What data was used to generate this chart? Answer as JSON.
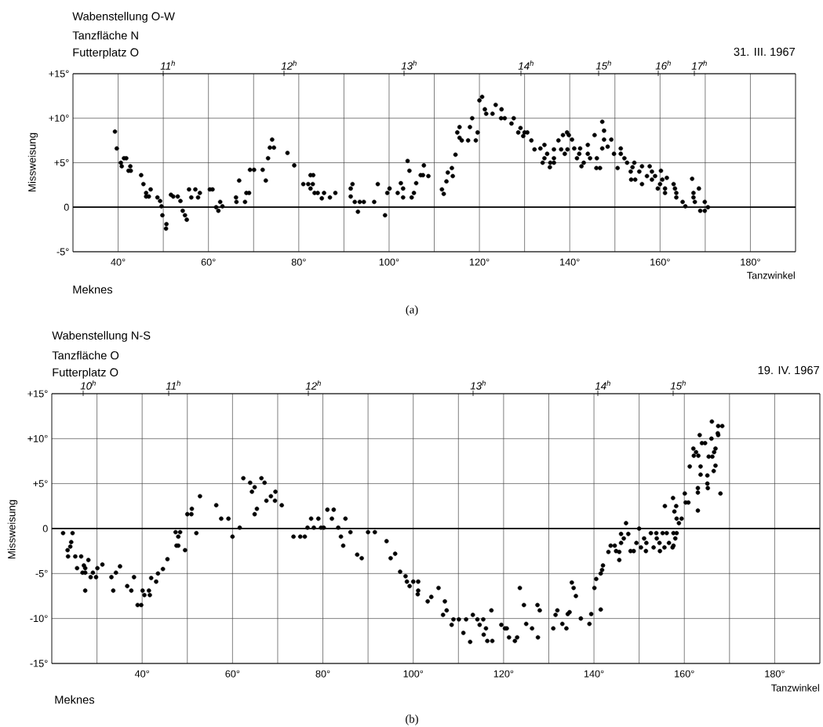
{
  "chart_data": [
    {
      "type": "scatter",
      "title": "Wabenstellung O-W",
      "annotations": [
        "Tanzfläche N",
        "Futterplatz O",
        "31. III. 1967",
        "Meknes",
        "(a)",
        "11$^{h}$",
        "12$^{h}$",
        "13$^{h}$",
        "14$^{h}$",
        "15$^{h}$",
        "16$^{h}$",
        "17$^{h}$"
      ],
      "xlabel": "Tanzwinkel",
      "ylabel": "Missweisung",
      "x": [
        39.3,
        39.7,
        40.6,
        40.8,
        41.3,
        41.8,
        42.3,
        42.8,
        42.7,
        45.1,
        45.6,
        46.2,
        46.2,
        46.8,
        47.2,
        48.7,
        49.3,
        49.6,
        49.8,
        50.7,
        50.6,
        51.7,
        52.2,
        53.2,
        53.8,
        54.3,
        54.8,
        55.2,
        55.7,
        56.2,
        57.1,
        57.7,
        58.1,
        60.3,
        60.9,
        61.7,
        62.2,
        62.6,
        63.1,
        66.1,
        66.2,
        66.8,
        68.1,
        68.4,
        69.0,
        69.2,
        70.1,
        72.0,
        72.7,
        73.2,
        73.6,
        74.5,
        74.1,
        77.5,
        79.0,
        81.0,
        82.1,
        82.6,
        83.2,
        82.6,
        83.1,
        83.5,
        84.2,
        85.1,
        85.6,
        86.9,
        88.1,
        91.5,
        91.9,
        91.5,
        92.4,
        93.1,
        93.5,
        94.4,
        96.7,
        97.5,
        99.1,
        99.6,
        100.1,
        101.9,
        102.6,
        103.1,
        103.1,
        104.1,
        104.5,
        105.0,
        105.5,
        106.0,
        107.0,
        107.5,
        107.7,
        108.7,
        111.7,
        112.1,
        112.7,
        113.0,
        113.9,
        114.1,
        114.7,
        115.1,
        115.6,
        115.6,
        116.1,
        117.5,
        117.9,
        118.4,
        119.2,
        119.6,
        120.0,
        120.6,
        121.2,
        121.5,
        122.9,
        123.6,
        124.9,
        124.8,
        125.6,
        127.1,
        127.6,
        128.6,
        129.1,
        129.7,
        130.0,
        130.6,
        131.5,
        132.2,
        133.5,
        134.0,
        134.4,
        134.4,
        135.0,
        135.6,
        135.7,
        136.5,
        136.5,
        136.5,
        138.1,
        137.5,
        138.5,
        138.9,
        139.4,
        139.8,
        139.5,
        140.5,
        141.0,
        142.3,
        141.6,
        142.1,
        144.0,
        142.6,
        143.1,
        144.0,
        144.5,
        146.0,
        145.5,
        145.9,
        146.7,
        147.2,
        147.6,
        147.2,
        147.6,
        149.2,
        148.4,
        149.8,
        151.3,
        151.3,
        150.6,
        152.1,
        152.7,
        153.5,
        153.6,
        154.5,
        153.9,
        154.3,
        155.4,
        156.0,
        156.0,
        157.1,
        157.7,
        158.2,
        158.2,
        160.5,
        158.9,
        159.5,
        160.0,
        163.0,
        160.2,
        161.1,
        161.5,
        161.1,
        163.3,
        163.6,
        167.4,
        163.6,
        167.4,
        165.0,
        169.9,
        165.6,
        167.1,
        168.6,
        167.7,
        168.9,
        170.6,
        169.9
      ],
      "values": [
        8.5,
        6.6,
        5.0,
        4.6,
        5.5,
        5.5,
        4.1,
        4.1,
        4.6,
        3.6,
        2.6,
        1.6,
        1.2,
        1.2,
        2.0,
        1.1,
        0.7,
        0.1,
        -0.9,
        -1.9,
        -2.4,
        1.4,
        1.2,
        1.2,
        0.7,
        -0.4,
        -0.9,
        -1.4,
        2.0,
        1.1,
        2.0,
        1.1,
        1.6,
        2.0,
        2.0,
        0,
        -0.4,
        0.6,
        0.1,
        1.1,
        0.6,
        3.0,
        0.6,
        1.6,
        1.6,
        4.2,
        4.2,
        4.2,
        3.0,
        5.5,
        6.7,
        6.7,
        7.6,
        6.1,
        4.7,
        2.6,
        2.6,
        3.6,
        3.6,
        2.1,
        2.6,
        1.6,
        1.6,
        1.0,
        1.6,
        1.1,
        1.6,
        2.1,
        2.6,
        1.2,
        0.6,
        -0.5,
        0.6,
        0.6,
        0.6,
        2.6,
        -0.9,
        1.6,
        2.1,
        1.6,
        2.7,
        2.1,
        1.1,
        5.2,
        4.1,
        1.1,
        1.6,
        2.7,
        3.6,
        3.6,
        4.7,
        3.5,
        2.0,
        1.5,
        2.9,
        3.9,
        4.4,
        3.5,
        5.9,
        8.4,
        9.0,
        7.8,
        7.5,
        7.5,
        9.0,
        10.0,
        7.5,
        8.4,
        12.0,
        12.4,
        11.0,
        10.5,
        10.5,
        11.5,
        11.0,
        10.0,
        10.0,
        9.4,
        10.0,
        8.4,
        8.9,
        8.0,
        8.4,
        8.4,
        7.5,
        6.5,
        6.6,
        5.0,
        5.5,
        7.0,
        6.0,
        4.5,
        5.0,
        5.0,
        5.5,
        6.5,
        6.5,
        7.5,
        8.1,
        6.0,
        8.4,
        8.1,
        6.5,
        7.6,
        6.6,
        6.6,
        5.5,
        6.0,
        6.0,
        4.6,
        5.0,
        7.0,
        5.5,
        5.5,
        8.1,
        4.4,
        4.4,
        9.6,
        8.6,
        6.6,
        7.6,
        7.6,
        6.8,
        6.0,
        6.0,
        6.6,
        4.4,
        5.5,
        5.0,
        4.0,
        3.1,
        3.1,
        4.5,
        5.0,
        4.0,
        4.6,
        2.6,
        3.5,
        4.6,
        4.0,
        3.1,
        3.1,
        3.5,
        2.1,
        2.6,
        2.6,
        4.1,
        2.1,
        3.3,
        1.6,
        2.1,
        1.6,
        1.6,
        1.1,
        1.1,
        0.6,
        0.6,
        0.1,
        3.2,
        2.1,
        0.6,
        -0.4,
        0.0,
        -0.4
      ],
      "color": "#000000",
      "marker": "circle",
      "grid": true,
      "xlim": [
        30,
        190
      ],
      "ylim": [
        -5,
        15
      ],
      "xticks": [
        {
          "value": 40,
          "label": "40°"
        },
        {
          "value": 50,
          "label": null
        },
        {
          "value": 60,
          "label": "60°"
        },
        {
          "value": 70,
          "label": null
        },
        {
          "value": 80,
          "label": "80°"
        },
        {
          "value": 90,
          "label": null
        },
        {
          "value": 100,
          "label": "100°"
        },
        {
          "value": 110,
          "label": null
        },
        {
          "value": 120,
          "label": "120°"
        },
        {
          "value": 130,
          "label": null
        },
        {
          "value": 140,
          "label": "140°"
        },
        {
          "value": 150,
          "label": null
        },
        {
          "value": 160,
          "label": "160°"
        },
        {
          "value": 170,
          "label": null
        },
        {
          "value": 180,
          "label": "180°"
        }
      ],
      "yticks": [
        {
          "value": -5,
          "label": "-5°"
        },
        0,
        {
          "value": 5,
          "label": "+5°"
        },
        {
          "value": 10,
          "label": "+10°"
        },
        {
          "value": 15,
          "label": "+15°"
        }
      ],
      "ref_lines": [
        {
          "axis": "y",
          "value": 0
        }
      ]
    },
    {
      "type": "scatter",
      "title": "Wabenstellung N-S",
      "annotations": [
        "Tanzfläche O",
        "Futterplatz O",
        "19. IV. 1967",
        "Meknes",
        "(b)",
        "10$^{h}$",
        "11$^{h}$",
        "12$^{h}$",
        "13$^{h}$",
        "14$^{h}$",
        "15$^{h}$"
      ],
      "xlabel": "Tanzwinkel",
      "ylabel": "Missweisung",
      "x": [
        22.5,
        23.5,
        23.6,
        24.1,
        24.3,
        24.6,
        25.2,
        25.6,
        26.5,
        26.8,
        27.4,
        27.1,
        27.4,
        27.4,
        28.1,
        28.6,
        29.1,
        29.8,
        30.1,
        31.2,
        33.2,
        33.6,
        34.2,
        35.1,
        36.7,
        37.6,
        38.2,
        39.0,
        39.8,
        40.1,
        40.5,
        41.7,
        41.5,
        42.0,
        43.1,
        43.5,
        44.6,
        45.6,
        47.4,
        48.0,
        48.4,
        47.6,
        48.0,
        49.5,
        50.0,
        50.9,
        51.0,
        52.0,
        52.8,
        56.4,
        57.5,
        59.1,
        60.0,
        61.6,
        62.4,
        63.9,
        64.3,
        64.9,
        64.9,
        65.4,
        66.4,
        67.1,
        67.5,
        68.5,
        69.5,
        69.4,
        70.9,
        73.5,
        76.0,
        75.0,
        76.6,
        77.4,
        78.0,
        79.0,
        79.6,
        80.2,
        81.0,
        82.0,
        82.4,
        83.4,
        84.0,
        84.5,
        85.0,
        86.1,
        87.6,
        88.6,
        90.0,
        91.5,
        94.1,
        95.0,
        96.0,
        97.1,
        98.3,
        98.6,
        99.2,
        100.0,
        101.1,
        101.1,
        101.0,
        103.2,
        104.0,
        105.6,
        106.6,
        107.0,
        107.4,
        108.5,
        108.9,
        111.7,
        110.1,
        111.1,
        112.6,
        113.2,
        114.2,
        115.5,
        114.7,
        115.6,
        116.1,
        116.4,
        117.5,
        117.3,
        119.5,
        120.3,
        120.7,
        121.2,
        123.0,
        122.5,
        123.6,
        124.5,
        125.0,
        126.3,
        127.5,
        128.0,
        127.6,
        131.0,
        131.5,
        131.9,
        133.0,
        133.9,
        134.2,
        134.6,
        135.1,
        135.5,
        136.0,
        137.1,
        139.0,
        139.4,
        140.1,
        140.5,
        141.5,
        141.5,
        141.8,
        142.0,
        143.2,
        145.6,
        143.7,
        144.6,
        144.9,
        145.6,
        146.0,
        146.0,
        146.6,
        147.1,
        147.6,
        148.1,
        148.8,
        149.4,
        151.6,
        150.0,
        150.4,
        151.1,
        151.5,
        152.6,
        153.2,
        153.8,
        153.9,
        154.5,
        154.6,
        155.2,
        155.6,
        156.1,
        156.6,
        157.4,
        157.6,
        157.6,
        158.3,
        158.0,
        155.7,
        157.5,
        158.2,
        157.8,
        158.3,
        159.4,
        158.8,
        160.1,
        160.3,
        160.9,
        161.2,
        162.0,
        162.1,
        163.1,
        162.6,
        163.0,
        163.0,
        163.0,
        163.4,
        163.6,
        163.6,
        163.9,
        164.6,
        165.1,
        165.1,
        165.2,
        165.4,
        166.2,
        166.0,
        166.1,
        166.6,
        166.9,
        166.9,
        166.5,
        167.4,
        167.5,
        167.5,
        168.4,
        168.0
      ],
      "values": [
        -0.5,
        -2.4,
        -3.1,
        -2.0,
        -1.5,
        -0.5,
        -3.1,
        -4.4,
        -3.1,
        -4.9,
        -4.9,
        -4.1,
        -4.4,
        -6.9,
        -3.5,
        -5.4,
        -4.9,
        -5.4,
        -4.4,
        -4.0,
        -5.4,
        -6.9,
        -4.9,
        -4.2,
        -6.4,
        -6.9,
        -5.4,
        -8.5,
        -8.5,
        -6.9,
        -7.4,
        -7.4,
        -6.9,
        -5.5,
        -5.9,
        -5.0,
        -4.5,
        -3.4,
        -0.4,
        -0.9,
        -0.4,
        -1.9,
        -1.9,
        -2.4,
        1.6,
        1.6,
        2.2,
        -0.5,
        3.6,
        2.6,
        1.1,
        1.1,
        -0.9,
        0.1,
        5.6,
        5.1,
        4.1,
        4.6,
        1.6,
        2.2,
        5.6,
        5.1,
        3.1,
        3.6,
        4.1,
        3.1,
        2.6,
        -0.9,
        -0.9,
        -0.9,
        0.1,
        1.1,
        0.1,
        1.1,
        0.1,
        0.1,
        2.1,
        1.1,
        2.1,
        0.1,
        -0.9,
        -1.9,
        1.1,
        -0.4,
        -2.9,
        -3.3,
        -0.4,
        -0.4,
        -1.4,
        -3.3,
        -2.8,
        -4.8,
        -5.3,
        -5.9,
        -6.4,
        -5.9,
        -5.9,
        -6.9,
        -7.3,
        -8.1,
        -7.6,
        -6.6,
        -9.6,
        -8.1,
        -9.1,
        -10.7,
        -10.1,
        -10.1,
        -10.1,
        -11.6,
        -12.6,
        -9.6,
        -10.1,
        -10.1,
        -10.7,
        -11.8,
        -11.1,
        -12.5,
        -12.5,
        -9.1,
        -10.7,
        -11.1,
        -11.1,
        -12.1,
        -12.1,
        -12.5,
        -6.6,
        -8.5,
        -10.6,
        -11.1,
        -8.5,
        -9.1,
        -12.1,
        -11.1,
        -9.6,
        -9.1,
        -10.6,
        -11.1,
        -9.5,
        -9.3,
        -6.0,
        -6.6,
        -7.5,
        -10.0,
        -10.6,
        -9.5,
        -6.6,
        -5.6,
        -9.0,
        -5.0,
        -4.6,
        -4.1,
        -2.6,
        -2.6,
        -1.9,
        -1.9,
        -2.5,
        -3.5,
        -1.6,
        -0.6,
        -1.1,
        0.6,
        -0.6,
        -2.5,
        -2.5,
        -1.6,
        -1.6,
        0.0,
        -2.1,
        -1.1,
        -2.5,
        -0.5,
        -2.1,
        -0.5,
        -1.1,
        -1.6,
        -2.5,
        -0.5,
        -2.1,
        -0.5,
        -1.6,
        -2.1,
        -1.9,
        -0.5,
        -0.5,
        -1.1,
        2.5,
        3.4,
        2.5,
        1.9,
        1.1,
        1.1,
        0.6,
        3.9,
        2.9,
        2.9,
        6.9,
        8.9,
        8.1,
        8.1,
        8.5,
        4.5,
        4.0,
        2.0,
        10.4,
        6.9,
        6.0,
        9.5,
        9.5,
        5.9,
        5.0,
        4.5,
        8.0,
        8.0,
        10.0,
        11.9,
        8.5,
        8.9,
        7.0,
        6.4,
        10.6,
        10.4,
        11.4,
        11.4,
        3.9
      ],
      "color": "#000000",
      "marker": "circle",
      "grid": true,
      "xlim": [
        20,
        190
      ],
      "ylim": [
        -15,
        15
      ],
      "xticks": [
        {
          "value": 30,
          "label": null
        },
        {
          "value": 40,
          "label": "40°"
        },
        {
          "value": 50,
          "label": null
        },
        {
          "value": 60,
          "label": "60°"
        },
        {
          "value": 70,
          "label": null
        },
        {
          "value": 80,
          "label": "80°"
        },
        {
          "value": 90,
          "label": null
        },
        {
          "value": 100,
          "label": "100°"
        },
        {
          "value": 110,
          "label": null
        },
        {
          "value": 120,
          "label": "120°"
        },
        {
          "value": 130,
          "label": null
        },
        {
          "value": 140,
          "label": "140°"
        },
        {
          "value": 150,
          "label": null
        },
        {
          "value": 160,
          "label": "160°"
        },
        {
          "value": 170,
          "label": null
        },
        {
          "value": 180,
          "label": "180°"
        }
      ],
      "yticks": [
        {
          "value": -15,
          "label": "-15°"
        },
        {
          "value": -10,
          "label": "-10°"
        },
        {
          "value": -5,
          "label": "-5°"
        },
        0,
        {
          "value": 5,
          "label": "+5°"
        },
        {
          "value": 10,
          "label": "+10°"
        },
        {
          "value": 15,
          "label": "+15°"
        }
      ],
      "ref_lines": [
        {
          "axis": "y",
          "value": 0
        }
      ]
    }
  ]
}
